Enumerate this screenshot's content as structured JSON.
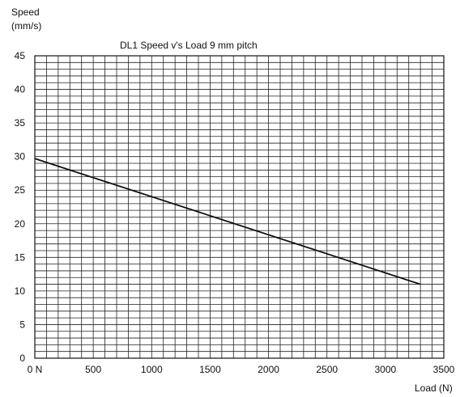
{
  "chart_data": {
    "type": "line",
    "title": "DL1 Speed v's Load 9 mm pitch",
    "ylabel_line1": "Speed",
    "ylabel_line2": "(mm/s)",
    "xlabel": "Load (N)",
    "xlim": [
      0,
      3500
    ],
    "ylim": [
      0,
      45
    ],
    "x_tick_labels": [
      "0 N",
      "500",
      "1000",
      "1500",
      "2000",
      "2500",
      "3000",
      "3500"
    ],
    "x_tick_values": [
      0,
      500,
      1000,
      1500,
      2000,
      2500,
      3000,
      3500
    ],
    "y_tick_labels": [
      "0",
      "5",
      "10",
      "15",
      "20",
      "25",
      "30",
      "35",
      "40",
      "45"
    ],
    "y_tick_values": [
      0,
      5,
      10,
      15,
      20,
      25,
      30,
      35,
      40,
      45
    ],
    "grid": true,
    "grid_minor_x_step": 100,
    "grid_minor_y_step": 1,
    "series": [
      {
        "x": [
          0,
          3300
        ],
        "y": [
          29.7,
          11.0
        ],
        "color": "#111111"
      }
    ]
  }
}
